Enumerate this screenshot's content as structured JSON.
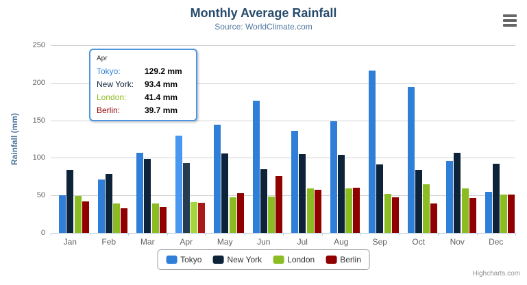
{
  "header": {
    "title": "Monthly Average Rainfall",
    "subtitle": "Source: WorldClimate.com"
  },
  "chart_data": {
    "type": "bar",
    "title": "Monthly Average Rainfall",
    "subtitle": "Source: WorldClimate.com",
    "xlabel": "",
    "ylabel": "Rainfall (mm)",
    "ylim": [
      0,
      250
    ],
    "yticks": [
      0,
      50,
      100,
      150,
      200,
      250
    ],
    "grid": true,
    "legend_position": "bottom-center",
    "categories": [
      "Jan",
      "Feb",
      "Mar",
      "Apr",
      "May",
      "Jun",
      "Jul",
      "Aug",
      "Sep",
      "Oct",
      "Nov",
      "Dec"
    ],
    "hovered_category": "Apr",
    "series": [
      {
        "name": "Tokyo",
        "color": "#2f7ed8",
        "hover_color": "#4897f1",
        "values": [
          49.9,
          71.5,
          106.4,
          129.2,
          144.0,
          176.0,
          135.6,
          148.5,
          216.4,
          194.1,
          95.6,
          54.4
        ]
      },
      {
        "name": "New York",
        "color": "#0d233a",
        "hover_color": "#263c53",
        "values": [
          83.6,
          78.8,
          98.5,
          93.4,
          106.0,
          84.5,
          105.0,
          104.3,
          91.2,
          83.5,
          106.6,
          92.3
        ]
      },
      {
        "name": "London",
        "color": "#8bbc21",
        "hover_color": "#a4d53a",
        "values": [
          48.9,
          38.8,
          39.3,
          41.4,
          47.0,
          48.3,
          59.0,
          59.6,
          52.4,
          65.2,
          59.3,
          51.2
        ]
      },
      {
        "name": "Berlin",
        "color": "#910000",
        "hover_color": "#aa1919",
        "values": [
          42.4,
          33.2,
          34.5,
          39.7,
          52.6,
          75.5,
          57.4,
          60.4,
          47.6,
          39.1,
          46.8,
          51.1
        ]
      }
    ]
  },
  "tooltip": {
    "header": "Apr",
    "border_color": "#4d96e0",
    "rows": [
      {
        "name": "Tokyo",
        "color": "#2f7ed8",
        "value": "129.2 mm"
      },
      {
        "name": "New York",
        "color": "#0d233a",
        "value": "93.4 mm"
      },
      {
        "name": "London",
        "color": "#8bbc21",
        "value": "41.4 mm"
      },
      {
        "name": "Berlin",
        "color": "#910000",
        "value": "39.7 mm"
      }
    ]
  },
  "export_menu": {
    "icon": "hamburger-icon"
  },
  "credits": {
    "label": "Highcharts.com"
  }
}
